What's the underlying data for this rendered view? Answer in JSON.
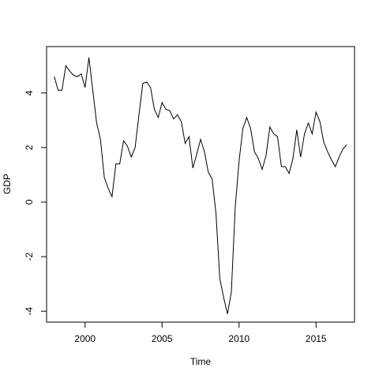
{
  "chart_data": {
    "type": "line",
    "title": "",
    "xlabel": "Time",
    "ylabel": "GDP",
    "xlim": [
      1997.5,
      2017.5
    ],
    "ylim": [
      -4.4,
      5.7
    ],
    "x_ticks": [
      2000,
      2005,
      2010,
      2015
    ],
    "y_ticks": [
      -4,
      -2,
      0,
      2,
      4
    ],
    "grid": false,
    "legend": "none",
    "line_color": "#000000",
    "start": 1998.0,
    "frequency": 4,
    "values": [
      4.6,
      4.1,
      4.1,
      5.0,
      4.8,
      4.65,
      4.6,
      4.7,
      4.2,
      5.3,
      4.1,
      2.9,
      2.3,
      0.9,
      0.5,
      0.2,
      1.4,
      1.4,
      2.25,
      2.05,
      1.65,
      2.0,
      3.2,
      4.35,
      4.4,
      4.2,
      3.4,
      3.1,
      3.65,
      3.4,
      3.35,
      3.05,
      3.2,
      2.95,
      2.15,
      2.4,
      1.25,
      1.75,
      2.3,
      1.85,
      1.1,
      0.85,
      -0.4,
      -2.8,
      -3.5,
      -4.1,
      -3.3,
      -0.2,
      1.5,
      2.7,
      3.1,
      2.7,
      1.85,
      1.6,
      1.2,
      1.7,
      2.75,
      2.5,
      2.4,
      1.3,
      1.3,
      1.05,
      1.6,
      2.65,
      1.65,
      2.5,
      2.9,
      2.5,
      3.3,
      2.95,
      2.2,
      1.85,
      1.55,
      1.3,
      1.65,
      1.95,
      2.1
    ]
  }
}
